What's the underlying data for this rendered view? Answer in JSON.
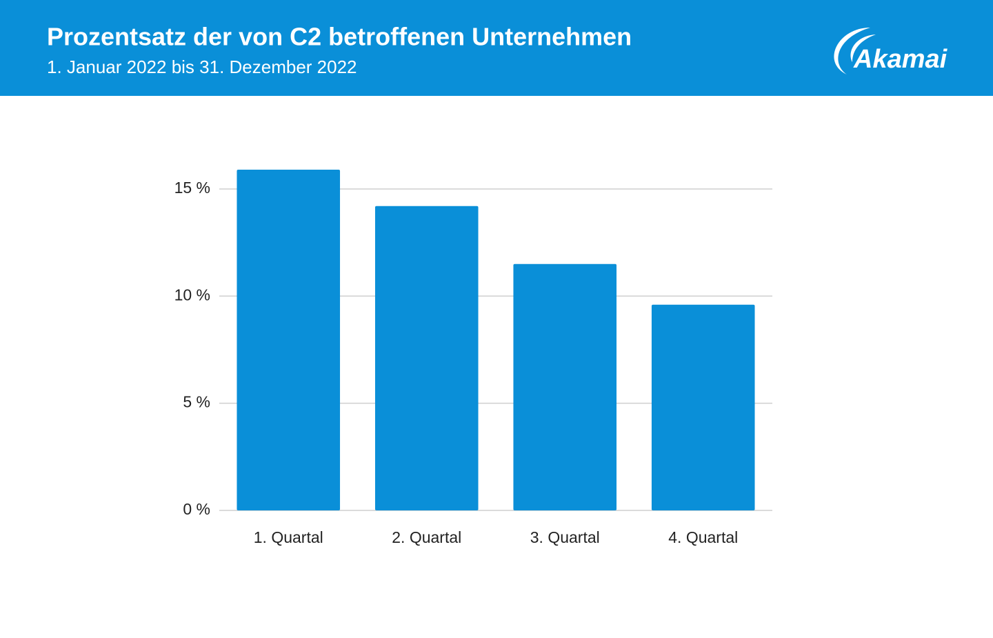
{
  "header": {
    "title": "Prozentsatz der von C2 betroffenen Unternehmen",
    "subtitle": "1. Januar 2022 bis 31. Dezember 2022",
    "logo": "Akamai"
  },
  "chart_data": {
    "type": "bar",
    "categories": [
      "1. Quartal",
      "2. Quartal",
      "3. Quartal",
      "4. Quartal"
    ],
    "values": [
      15.9,
      14.2,
      11.5,
      9.6
    ],
    "color": "#0a8fd8",
    "ylim": [
      0,
      16
    ],
    "yticks": [
      {
        "value": 0,
        "label": "0 %"
      },
      {
        "value": 5,
        "label": "5 %"
      },
      {
        "value": 10,
        "label": "10 %"
      },
      {
        "value": 15,
        "label": "15 %"
      }
    ],
    "grid": true
  }
}
